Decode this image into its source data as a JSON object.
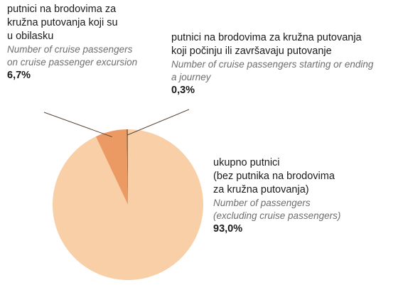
{
  "chart_data": {
    "type": "pie",
    "slices": [
      {
        "label_hr": "ukupno putnici\n(bez putnika na brodovima\nza kružna putovanja)",
        "label_en": "Number of passengers\n(excluding cruise passengers)",
        "value": 93.0,
        "value_label": "93,0%",
        "color": "#f8cfa7"
      },
      {
        "label_hr": "putnici na brodovima za\nkružna putovanja koji su\nu obilasku",
        "label_en": "Number of cruise passengers\non cruise passenger excursion",
        "value": 6.7,
        "value_label": "6,7%",
        "color": "#ec9a64"
      },
      {
        "label_hr": "putnici na brodovima za kružna putovanja\nkoji počinju ili završavaju putovanje",
        "label_en": "Number of cruise passengers starting or ending\na journey",
        "value": 0.3,
        "value_label": "0,3%",
        "color": "#9a6b3c"
      }
    ],
    "leader_color": "#5a4636"
  }
}
